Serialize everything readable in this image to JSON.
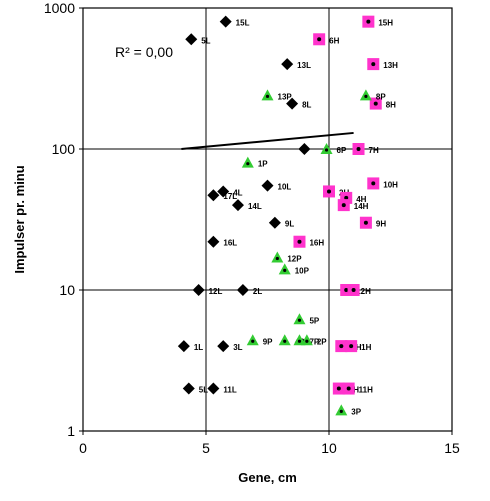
{
  "chart_data": {
    "type": "scatter",
    "xlabel": "Gene, cm",
    "ylabel": "Impulser pr. minu",
    "xlim": [
      0,
      15
    ],
    "ylim": [
      1,
      1000
    ],
    "yscale": "log",
    "xticks": [
      "0",
      "5",
      "10",
      "15"
    ],
    "yticks": [
      "1",
      "10",
      "100",
      "1000"
    ],
    "grid": "major lines at x=5, x=10 and y=10, y=100",
    "annotation": "R² = 0,00",
    "trendline": {
      "x": [
        4.0,
        11.0
      ],
      "y": [
        100,
        130
      ]
    },
    "series": [
      {
        "marker": "diamond",
        "color": "#000000",
        "points": [
          {
            "label": "15L",
            "x": 5.8,
            "y": 800
          },
          {
            "label": "5L",
            "x": 4.4,
            "y": 600
          },
          {
            "label": "13L",
            "x": 8.3,
            "y": 400
          },
          {
            "label": "8L",
            "x": 8.5,
            "y": 210
          },
          {
            "label": "",
            "x": 9.0,
            "y": 100
          },
          {
            "label": "10L",
            "x": 7.5,
            "y": 55
          },
          {
            "label": "4L",
            "x": 5.7,
            "y": 50
          },
          {
            "label": "17L",
            "x": 5.3,
            "y": 47
          },
          {
            "label": "14L",
            "x": 6.3,
            "y": 40
          },
          {
            "label": "9L",
            "x": 7.8,
            "y": 30
          },
          {
            "label": "16L",
            "x": 5.3,
            "y": 22
          },
          {
            "label": "12L",
            "x": 4.7,
            "y": 10
          },
          {
            "label": "2L",
            "x": 6.5,
            "y": 10
          },
          {
            "label": "1L",
            "x": 4.1,
            "y": 4
          },
          {
            "label": "3L",
            "x": 5.7,
            "y": 4
          },
          {
            "label": "5L",
            "x": 4.3,
            "y": 2
          },
          {
            "label": "11L",
            "x": 5.3,
            "y": 2
          }
        ]
      },
      {
        "marker": "square",
        "color": "#ff33cc",
        "points": [
          {
            "label": "15H",
            "x": 11.6,
            "y": 800
          },
          {
            "label": "6H",
            "x": 9.6,
            "y": 600
          },
          {
            "label": "13H",
            "x": 11.8,
            "y": 400
          },
          {
            "label": "8H",
            "x": 11.9,
            "y": 210
          },
          {
            "label": "7H",
            "x": 11.2,
            "y": 100
          },
          {
            "label": "10H",
            "x": 11.8,
            "y": 57
          },
          {
            "label": "2H",
            "x": 10.0,
            "y": 50
          },
          {
            "label": "4H",
            "x": 10.7,
            "y": 45
          },
          {
            "label": "14H",
            "x": 10.6,
            "y": 40
          },
          {
            "label": "9H",
            "x": 11.5,
            "y": 30
          },
          {
            "label": "16H",
            "x": 8.8,
            "y": 22
          },
          {
            "label": "12H",
            "x": 10.7,
            "y": 10
          },
          {
            "label": "",
            "x": 11.0,
            "y": 10
          },
          {
            "label": "5H",
            "x": 10.5,
            "y": 4
          },
          {
            "label": "1H",
            "x": 10.9,
            "y": 4
          },
          {
            "label": "5H",
            "x": 10.4,
            "y": 2
          },
          {
            "label": "11H",
            "x": 10.8,
            "y": 2
          }
        ]
      },
      {
        "marker": "triangle",
        "color": "#33cc33",
        "points": [
          {
            "label": "13P",
            "x": 7.5,
            "y": 240
          },
          {
            "label": "8P",
            "x": 11.5,
            "y": 240
          },
          {
            "label": "6P",
            "x": 9.9,
            "y": 100
          },
          {
            "label": "1P",
            "x": 6.7,
            "y": 80
          },
          {
            "label": "12P",
            "x": 7.9,
            "y": 17
          },
          {
            "label": "10P",
            "x": 8.2,
            "y": 14
          },
          {
            "label": "5P",
            "x": 8.8,
            "y": 6.2
          },
          {
            "label": "9P",
            "x": 6.9,
            "y": 4.4
          },
          {
            "label": "4P",
            "x": 8.2,
            "y": 4.4
          },
          {
            "label": "7P",
            "x": 8.8,
            "y": 4.4
          },
          {
            "label": "2P",
            "x": 9.1,
            "y": 4.4
          },
          {
            "label": "3P",
            "x": 10.5,
            "y": 1.4
          }
        ]
      }
    ]
  }
}
